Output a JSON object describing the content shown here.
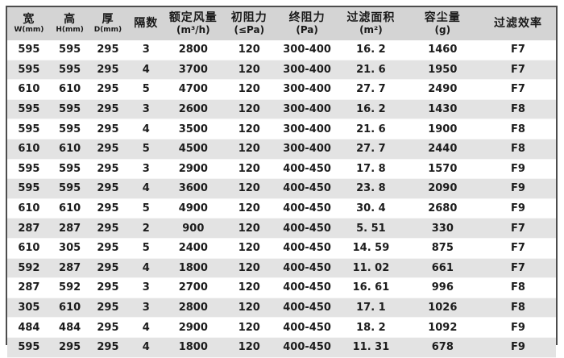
{
  "table": {
    "columns": [
      {
        "title": "宽",
        "sub": "W(mm)"
      },
      {
        "title": "高",
        "sub": "H(mm)"
      },
      {
        "title": "厚",
        "sub": "D(mm)"
      },
      {
        "title": "隔数",
        "sub": ""
      },
      {
        "title": "额定风量",
        "sub": "(m³/h)"
      },
      {
        "title": "初阻力",
        "sub": "(≤Pa)"
      },
      {
        "title": "终阻力",
        "sub": "(Pa)"
      },
      {
        "title": "过滤面积",
        "sub": "(m²)"
      },
      {
        "title": "容尘量",
        "sub": "(g)"
      },
      {
        "title": "过滤效率",
        "sub": ""
      }
    ],
    "rows": [
      [
        "595",
        "595",
        "295",
        "3",
        "2800",
        "120",
        "300-400",
        "16. 2",
        "1460",
        "F7"
      ],
      [
        "595",
        "595",
        "295",
        "4",
        "3700",
        "120",
        "300-400",
        "21. 6",
        "1950",
        "F7"
      ],
      [
        "610",
        "610",
        "295",
        "5",
        "4700",
        "120",
        "300-400",
        "27. 7",
        "2490",
        "F7"
      ],
      [
        "595",
        "595",
        "295",
        "3",
        "2600",
        "120",
        "300-400",
        "16. 2",
        "1430",
        "F8"
      ],
      [
        "595",
        "595",
        "295",
        "4",
        "3500",
        "120",
        "300-400",
        "21. 6",
        "1900",
        "F8"
      ],
      [
        "610",
        "610",
        "295",
        "5",
        "4500",
        "120",
        "300-400",
        "27. 7",
        "2440",
        "F8"
      ],
      [
        "595",
        "595",
        "295",
        "3",
        "2900",
        "120",
        "400-450",
        "17. 8",
        "1570",
        "F9"
      ],
      [
        "595",
        "595",
        "295",
        "4",
        "3600",
        "120",
        "400-450",
        "23. 8",
        "2090",
        "F9"
      ],
      [
        "610",
        "610",
        "295",
        "5",
        "4900",
        "120",
        "400-450",
        "30. 4",
        "2680",
        "F9"
      ],
      [
        "287",
        "287",
        "295",
        "2",
        "900",
        "120",
        "400-450",
        "5. 51",
        "330",
        "F7"
      ],
      [
        "610",
        "305",
        "295",
        "5",
        "2400",
        "120",
        "400-450",
        "14. 59",
        "875",
        "F7"
      ],
      [
        "592",
        "287",
        "295",
        "4",
        "1800",
        "120",
        "400-450",
        "11. 02",
        "661",
        "F7"
      ],
      [
        "287",
        "592",
        "295",
        "3",
        "2700",
        "120",
        "400-450",
        "16. 61",
        "996",
        "F8"
      ],
      [
        "305",
        "610",
        "295",
        "3",
        "2800",
        "120",
        "400-450",
        "17. 1",
        "1026",
        "F8"
      ],
      [
        "484",
        "484",
        "295",
        "4",
        "2900",
        "120",
        "400-450",
        "18. 2",
        "1092",
        "F9"
      ],
      [
        "595",
        "295",
        "295",
        "4",
        "1800",
        "120",
        "400-450",
        "11. 31",
        "678",
        "F9"
      ]
    ],
    "column_widths_pct": [
      7.9,
      7.0,
      6.9,
      7.0,
      10.2,
      10.2,
      10.9,
      12.4,
      13.7,
      13.8
    ]
  },
  "colors": {
    "header_bg": "#d4d4d4",
    "stripe_bg": "#e3e3e3",
    "border": "#4d4d4d",
    "text": "#1c1c1c"
  }
}
